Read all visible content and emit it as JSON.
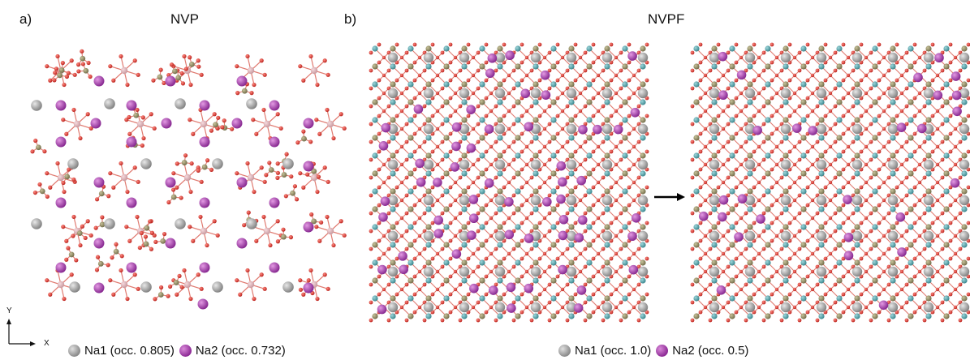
{
  "panel_a": {
    "label": "a)",
    "title": "NVP",
    "legend": {
      "na1": "Na1 (occ. 0.805)",
      "na2": "Na2 (occ. 0.732)"
    }
  },
  "panel_b": {
    "label": "b)",
    "title": "NVPF",
    "legend": {
      "na1": "Na1 (occ. 1.0)",
      "na2": "Na2 (occ. 0.5)"
    }
  },
  "axes": {
    "y": "Y",
    "x": "X"
  },
  "colors": {
    "na1": "#9b9b9b",
    "na2": "#a43aac",
    "oxygen": "#d8322c",
    "phosphorus": "#8b8560",
    "vanadium_nvp": "#dfb3b8",
    "vanadium_nvpf": "#4fa3a9",
    "bond": "#e07a70"
  }
}
